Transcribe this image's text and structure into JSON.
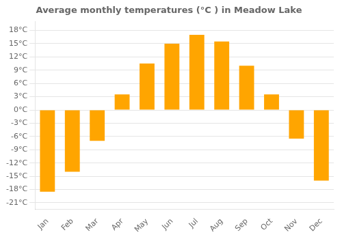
{
  "chart_data": {
    "type": "bar",
    "title": "Average monthly temperatures (°C ) in Meadow Lake",
    "categories": [
      "Jan",
      "Feb",
      "Mar",
      "Apr",
      "May",
      "Jun",
      "Jul",
      "Aug",
      "Sep",
      "Oct",
      "Nov",
      "Dec"
    ],
    "values": [
      -18.5,
      -14.0,
      -7.0,
      3.5,
      10.5,
      15.0,
      17.0,
      15.5,
      10.0,
      3.5,
      -6.5,
      -16.0
    ],
    "color": "#FFA500",
    "ylim": [
      -22.5,
      20.0
    ],
    "yticks": [
      {
        "value": -21,
        "label": "-21°C"
      },
      {
        "value": -18,
        "label": "-18°C"
      },
      {
        "value": -15,
        "label": "-15°C"
      },
      {
        "value": -12,
        "label": "-12°C"
      },
      {
        "value": -9,
        "label": "-9°C"
      },
      {
        "value": -6,
        "label": "-6°C"
      },
      {
        "value": -3,
        "label": "-3°C"
      },
      {
        "value": 0,
        "label": "0°C"
      },
      {
        "value": 3,
        "label": "3°C"
      },
      {
        "value": 6,
        "label": "6°C"
      },
      {
        "value": 9,
        "label": "9°C"
      },
      {
        "value": 12,
        "label": "12°C"
      },
      {
        "value": 15,
        "label": "15°C"
      },
      {
        "value": 18,
        "label": "18°C"
      }
    ],
    "grid": true
  }
}
